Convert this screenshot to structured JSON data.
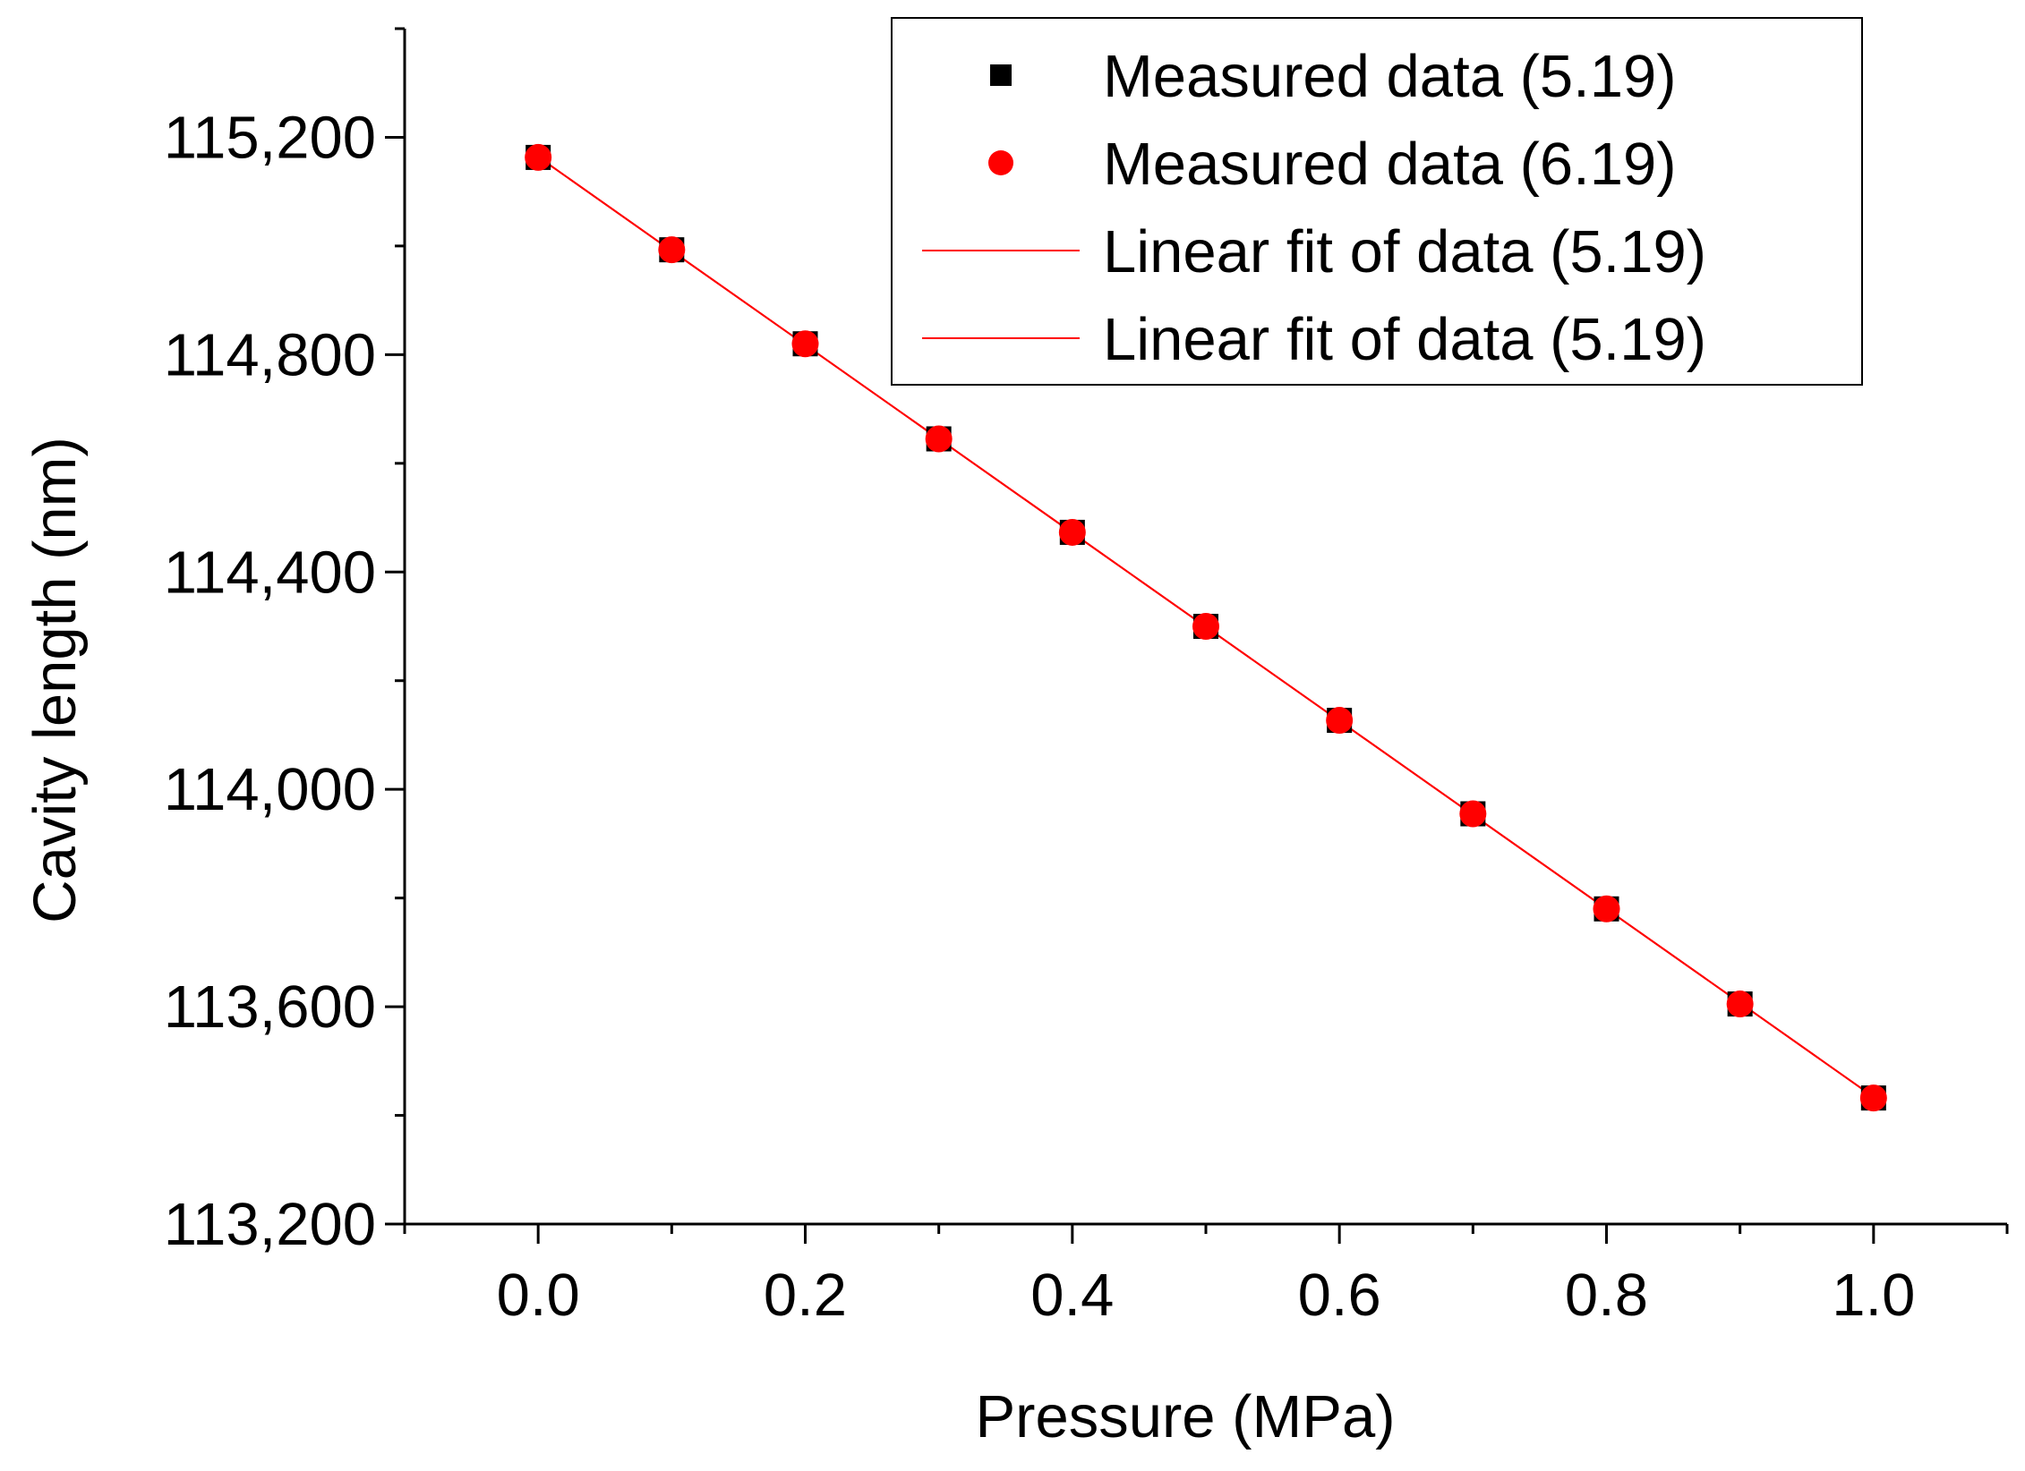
{
  "chart_data": {
    "type": "scatter",
    "title": "",
    "xlabel": "Pressure (MPa)",
    "ylabel": "Cavity length (nm)",
    "xlim": [
      -0.1,
      1.1
    ],
    "ylim": [
      113200,
      115400
    ],
    "xticks": [
      0.0,
      0.1,
      0.2,
      0.3,
      0.4,
      0.5,
      0.6,
      0.7,
      0.8,
      0.9,
      1.0
    ],
    "xtick_labels": [
      "0.0",
      "0.2",
      "0.4",
      "0.6",
      "0.8",
      "1.0"
    ],
    "yticks": [
      113200,
      113400,
      113600,
      113800,
      114000,
      114200,
      114400,
      114600,
      114800,
      115000,
      115200,
      115400
    ],
    "ytick_labels": [
      "113,200",
      "113,600",
      "114,000",
      "114,400",
      "114,800",
      "115,200"
    ],
    "grid": false,
    "legend_position": "top-right",
    "x": [
      0.0,
      0.1,
      0.2,
      0.3,
      0.4,
      0.5,
      0.6,
      0.7,
      0.8,
      0.9,
      1.0
    ],
    "series": [
      {
        "name": "Measured data (5.19)",
        "kind": "marker-square",
        "color": "#000000",
        "values": [
          115163,
          114993,
          114820,
          114645,
          114473,
          114300,
          114127,
          113955,
          113780,
          113605,
          113432
        ]
      },
      {
        "name": "Measured data (6.19)",
        "kind": "marker-circle",
        "color": "#ff0000",
        "values": [
          115163,
          114993,
          114820,
          114645,
          114473,
          114300,
          114127,
          113955,
          113780,
          113605,
          113432
        ]
      },
      {
        "name": "Linear fit of data (5.19)",
        "kind": "line",
        "color": "#ff0000",
        "values": [
          115164,
          114991,
          114818,
          114645,
          114472,
          114299,
          114126,
          113953,
          113780,
          113607,
          113434
        ]
      },
      {
        "name": "Linear fit of data (5.19)",
        "kind": "line",
        "color": "#ff0000",
        "values": [
          115164,
          114991,
          114818,
          114645,
          114472,
          114299,
          114126,
          113953,
          113780,
          113607,
          113434
        ]
      }
    ]
  }
}
